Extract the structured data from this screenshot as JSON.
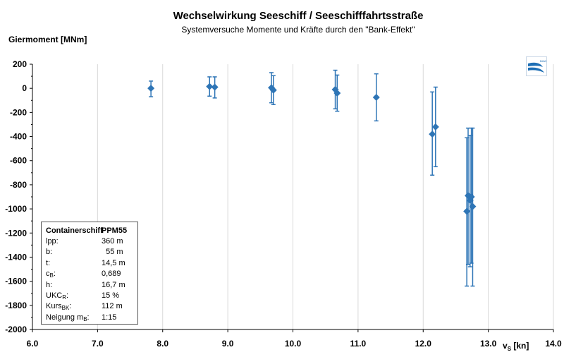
{
  "chart_data": {
    "type": "scatter",
    "title": "Wechselwirkung  Seeschiff  / Seeschifffahrtsstraße",
    "subtitle": "Systemversuche Momente und Kräfte durch den \"Bank-Effekt\"",
    "ylabel": "Giermoment [MNm]",
    "xlabel_main": "v",
    "xlabel_sub": "S",
    "xlabel_unit": " [kn]",
    "xlim": [
      6.0,
      14.0
    ],
    "ylim": [
      -2000,
      200
    ],
    "xticks": [
      "6.0",
      "7.0",
      "8.0",
      "9.0",
      "10.0",
      "11.0",
      "12.0",
      "13.0",
      "14.0"
    ],
    "yticks": [
      "200",
      "0",
      "-200",
      "-400",
      "-600",
      "-800",
      "-1000",
      "-1200",
      "-1400",
      "-1600",
      "-1800",
      "-2000"
    ],
    "grid": "vertical",
    "marker": "diamond",
    "color": "#2e75b6",
    "points": [
      {
        "x": 7.82,
        "y": 0,
        "ymin": -70,
        "ymax": 60
      },
      {
        "x": 8.72,
        "y": 15,
        "ymin": -65,
        "ymax": 95
      },
      {
        "x": 8.8,
        "y": 10,
        "ymin": -80,
        "ymax": 95
      },
      {
        "x": 9.67,
        "y": 5,
        "ymin": -120,
        "ymax": 130
      },
      {
        "x": 9.7,
        "y": -15,
        "ymin": -135,
        "ymax": 105
      },
      {
        "x": 10.65,
        "y": -10,
        "ymin": -170,
        "ymax": 150
      },
      {
        "x": 10.68,
        "y": -40,
        "ymin": -190,
        "ymax": 110
      },
      {
        "x": 11.28,
        "y": -75,
        "ymin": -270,
        "ymax": 120
      },
      {
        "x": 12.14,
        "y": -380,
        "ymin": -720,
        "ymax": -30
      },
      {
        "x": 12.19,
        "y": -320,
        "ymin": -650,
        "ymax": 10
      },
      {
        "x": 12.67,
        "y": -1020,
        "ymin": -1640,
        "ymax": -410
      },
      {
        "x": 12.69,
        "y": -890,
        "ymin": -1460,
        "ymax": -330
      },
      {
        "x": 12.72,
        "y": -930,
        "ymin": -1480,
        "ymax": -390
      },
      {
        "x": 12.74,
        "y": -900,
        "ymin": -1450,
        "ymax": -330
      },
      {
        "x": 12.76,
        "y": -980,
        "ymin": -1640,
        "ymax": -330
      }
    ]
  },
  "info_box": {
    "ship_type": "Containerschiff",
    "model": "PPM55",
    "rows": [
      {
        "label": "lpp:",
        "sub": "",
        "suffix": "",
        "value": "360 m"
      },
      {
        "label": "b:",
        "sub": "",
        "suffix": "",
        "value": "  55 m"
      },
      {
        "label": "t:",
        "sub": "",
        "suffix": "",
        "value": "14,5 m"
      },
      {
        "label": "c",
        "sub": "B",
        "suffix": ":",
        "value": "0,689"
      },
      {
        "label": "h:",
        "sub": "",
        "suffix": "",
        "value": "16,7 m"
      },
      {
        "label": "UKC",
        "sub": "R",
        "suffix": ":",
        "value": "15 %"
      },
      {
        "label": "Kurs",
        "sub": "BK",
        "suffix": ":",
        "value": "112 m"
      },
      {
        "label": "Neigung m",
        "sub": "B",
        "suffix": ":",
        "value": "1:15"
      }
    ]
  },
  "logo": {
    "label": "BAW",
    "color": "#1f6fb5"
  }
}
